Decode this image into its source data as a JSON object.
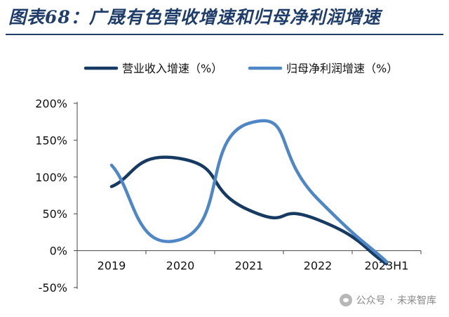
{
  "header": {
    "title": "图表68：广晟有色营收增速和归母净利润增速"
  },
  "watermark": {
    "source": "公众号",
    "separator": "·",
    "brand": "未来智库"
  },
  "chart_data": {
    "type": "line",
    "title": "",
    "xlabel": "",
    "ylabel": "",
    "categories": [
      "2019",
      "2020",
      "2021",
      "2022",
      "2023H1"
    ],
    "y_ticks": [
      "200%",
      "150%",
      "100%",
      "50%",
      "0%",
      "-50%"
    ],
    "ylim": [
      -50,
      200
    ],
    "grid": false,
    "legend_position": "top",
    "series": [
      {
        "name": "营业收入增速（%）",
        "color": "#173a63",
        "values": [
          87,
          125,
          55,
          42,
          -18
        ]
      },
      {
        "name": "归母净利润增速（%）",
        "color": "#4f87c6",
        "values": [
          116,
          15,
          173,
          70,
          -15
        ]
      }
    ]
  }
}
